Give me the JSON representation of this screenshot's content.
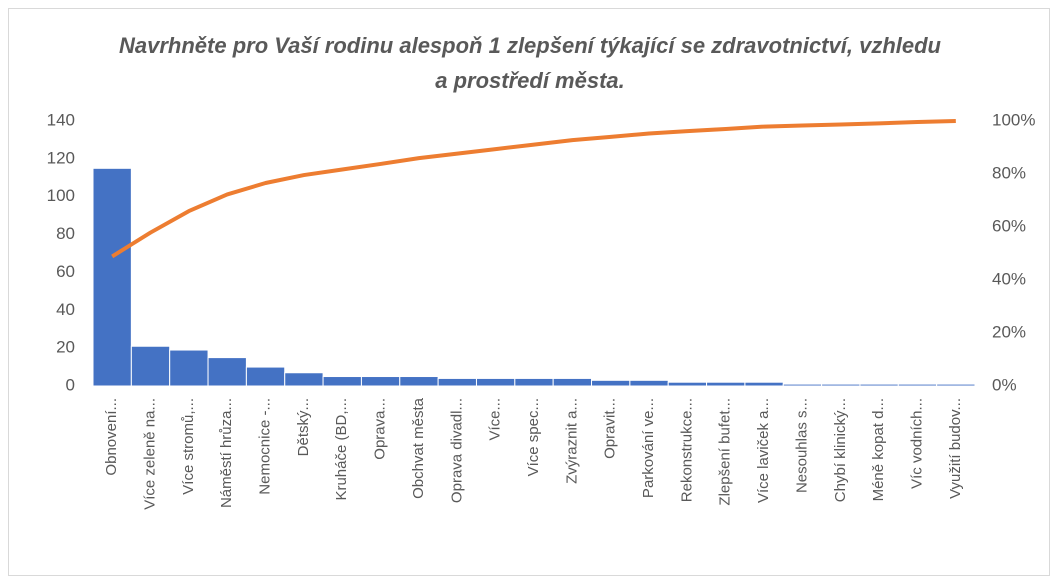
{
  "chart_data": {
    "type": "pareto",
    "title": "Navrhněte pro Vaší rodinu alespoň 1 zlepšení týkající se zdravotnictví, vzhledu a prostředí města.",
    "categories": [
      "Obnovení...",
      "Více zeleně na...",
      "Více stromů,...",
      "Náměstí hrůza...",
      "Nemocnice -...",
      "Dětský...",
      "Kruháče (BD,...",
      "Oprava...",
      "Obchvat města",
      "Oprava divadl...",
      "Více...",
      "Více spec...",
      "Zvýraznit a...",
      "Opravit...",
      "Parkování ve...",
      "Rekonstrukce...",
      "Zlepšení bufet...",
      "Více laviček a...",
      "Nesouhlas s...",
      "Chybí klinický...",
      "Méně kopat d...",
      "Víc vodních...",
      "Využití budov..."
    ],
    "series": [
      {
        "color": "#4472c4",
        "values": [
          115,
          21,
          19,
          15,
          10,
          7,
          5,
          5,
          5,
          4,
          4,
          4,
          4,
          3,
          3,
          2,
          2,
          2,
          1,
          1,
          1,
          1,
          1
        ]
      },
      {
        "color": "#ed7d31",
        "axis": "y2",
        "values": [
          48.9,
          57.9,
          66.0,
          72.3,
          76.6,
          79.6,
          81.7,
          83.8,
          86.0,
          87.7,
          89.4,
          91.1,
          92.8,
          94.0,
          95.3,
          96.2,
          97.0,
          97.9,
          98.3,
          98.7,
          99.1,
          99.6,
          100
        ]
      }
    ],
    "ylim": [
      0,
      140
    ],
    "yticks": [
      0,
      20,
      40,
      60,
      80,
      100,
      120,
      140
    ],
    "y2lim": [
      0,
      100
    ],
    "y2ticks": [
      {
        "value": 0,
        "label": "0%"
      },
      {
        "value": 20,
        "label": "20%"
      },
      {
        "value": 40,
        "label": "40%"
      },
      {
        "value": 60,
        "label": "60%"
      },
      {
        "value": 80,
        "label": "80%"
      },
      {
        "value": 100,
        "label": "100%"
      }
    ],
    "grid": false
  }
}
